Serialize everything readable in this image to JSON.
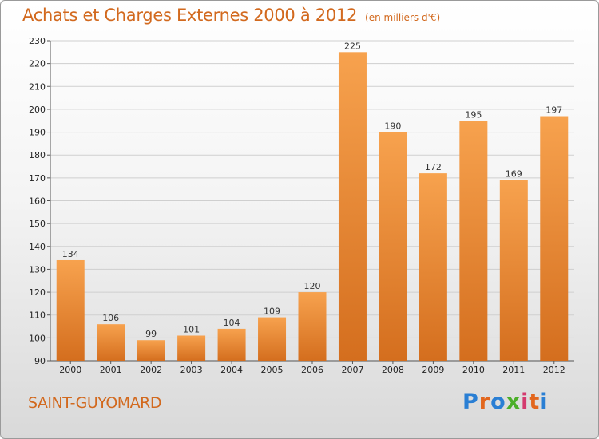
{
  "title": "Achats et Charges Externes 2000 à 2012",
  "unit_note": "(en milliers d'€)",
  "place": "SAINT-GUYOMARD",
  "logo": {
    "letters": [
      "P",
      "r",
      "o",
      "x",
      "i",
      "t",
      "i"
    ],
    "colors": [
      "#2a7fd4",
      "#e2661d",
      "#2a7fd4",
      "#4caf2a",
      "#d43a6e",
      "#e2661d",
      "#2a7fd4"
    ]
  },
  "colors": {
    "bar_top": "#f7a24e",
    "bar_bottom": "#d46e1e",
    "title": "#d2691e"
  },
  "chart_data": {
    "type": "bar",
    "categories": [
      "2000",
      "2001",
      "2002",
      "2003",
      "2004",
      "2005",
      "2006",
      "2007",
      "2008",
      "2009",
      "2010",
      "2011",
      "2012"
    ],
    "values": [
      134,
      106,
      99,
      101,
      104,
      109,
      120,
      225,
      190,
      172,
      195,
      169,
      197
    ],
    "ylim": [
      90,
      230
    ],
    "yticks": [
      90,
      100,
      110,
      120,
      130,
      140,
      150,
      160,
      170,
      180,
      190,
      200,
      210,
      220,
      230
    ],
    "grid": true
  }
}
